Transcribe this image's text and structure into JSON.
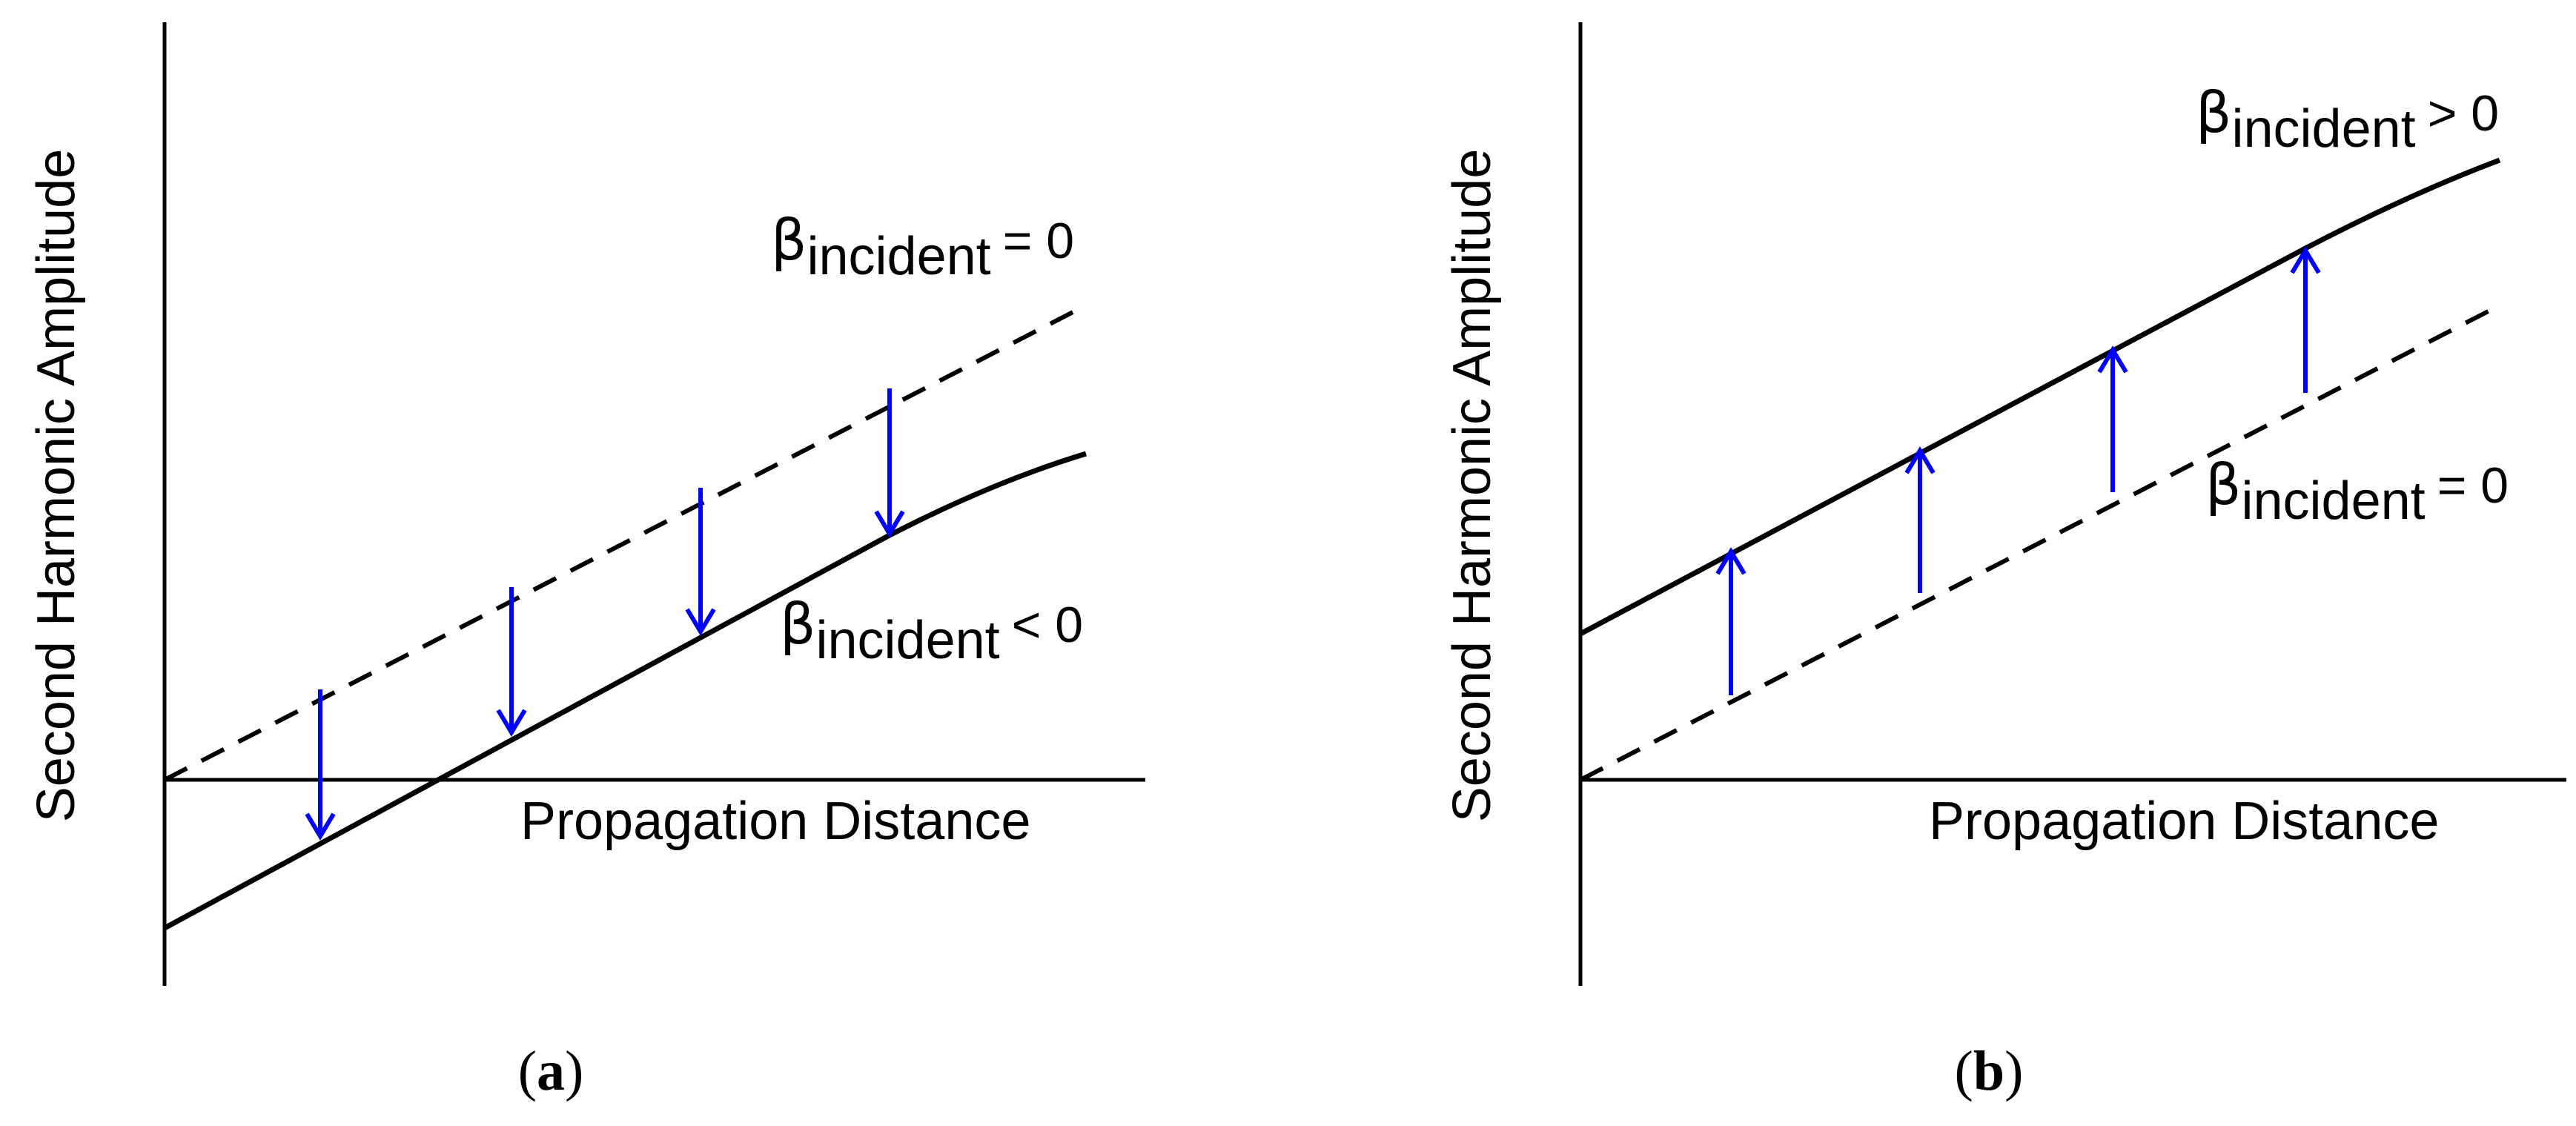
{
  "panels": [
    {
      "id": "a",
      "caption_open": "(",
      "caption_letter": "a",
      "caption_close": ")",
      "y_axis_label": "Second Harmonic Amplitude",
      "x_axis_label": "Propagation Distance",
      "dashed_curve_label": {
        "symbol": "β",
        "subscript": "incident",
        "relation": "= 0"
      },
      "solid_curve_label": {
        "symbol": "β",
        "subscript": "incident",
        "relation": "< 0"
      },
      "arrow_direction": "down",
      "arrow_color": "#0000ff"
    },
    {
      "id": "b",
      "caption_open": "(",
      "caption_letter": "b",
      "caption_close": ")",
      "y_axis_label": "Second Harmonic Amplitude",
      "x_axis_label": "Propagation Distance",
      "dashed_curve_label": {
        "symbol": "β",
        "subscript": "incident",
        "relation": "= 0"
      },
      "solid_curve_label": {
        "symbol": "β",
        "subscript": "incident",
        "relation": "> 0"
      },
      "arrow_direction": "up",
      "arrow_color": "#0000ff"
    }
  ]
}
